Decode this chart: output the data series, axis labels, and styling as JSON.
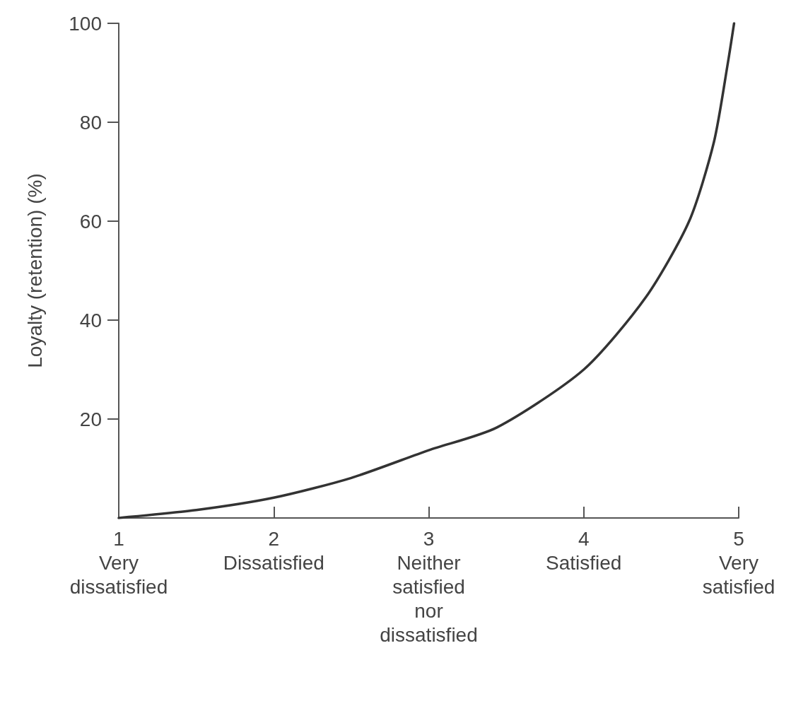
{
  "chart_data": {
    "type": "line",
    "ylabel": "Loyalty (retention) (%)",
    "x": [
      1,
      1.5,
      2,
      2.5,
      3,
      3.44,
      4,
      4.4,
      4.68,
      4.84,
      4.93,
      4.97
    ],
    "series": [
      {
        "color": "#333333",
        "values": [
          0,
          1.6,
          4.1,
          8.1,
          13.7,
          18.3,
          30,
          44.6,
          60,
          76,
          92,
          100
        ]
      }
    ],
    "xlim": [
      1,
      5
    ],
    "xticks": [
      {
        "value": 1,
        "label": "1\nVery\ndissatisfied"
      },
      {
        "value": 2,
        "label": "2\nDissatisfied"
      },
      {
        "value": 3,
        "label": "3\nNeither\nsatisfied\nnor\ndissatisfied"
      },
      {
        "value": 4,
        "label": "4\nSatisfied"
      },
      {
        "value": 5,
        "label": "5\nVery\nsatisfied"
      }
    ],
    "ylim": [
      0,
      100
    ],
    "yticks": [
      20,
      40,
      60,
      80,
      100
    ],
    "grid": false,
    "marker": "none",
    "line_style": "solid"
  }
}
